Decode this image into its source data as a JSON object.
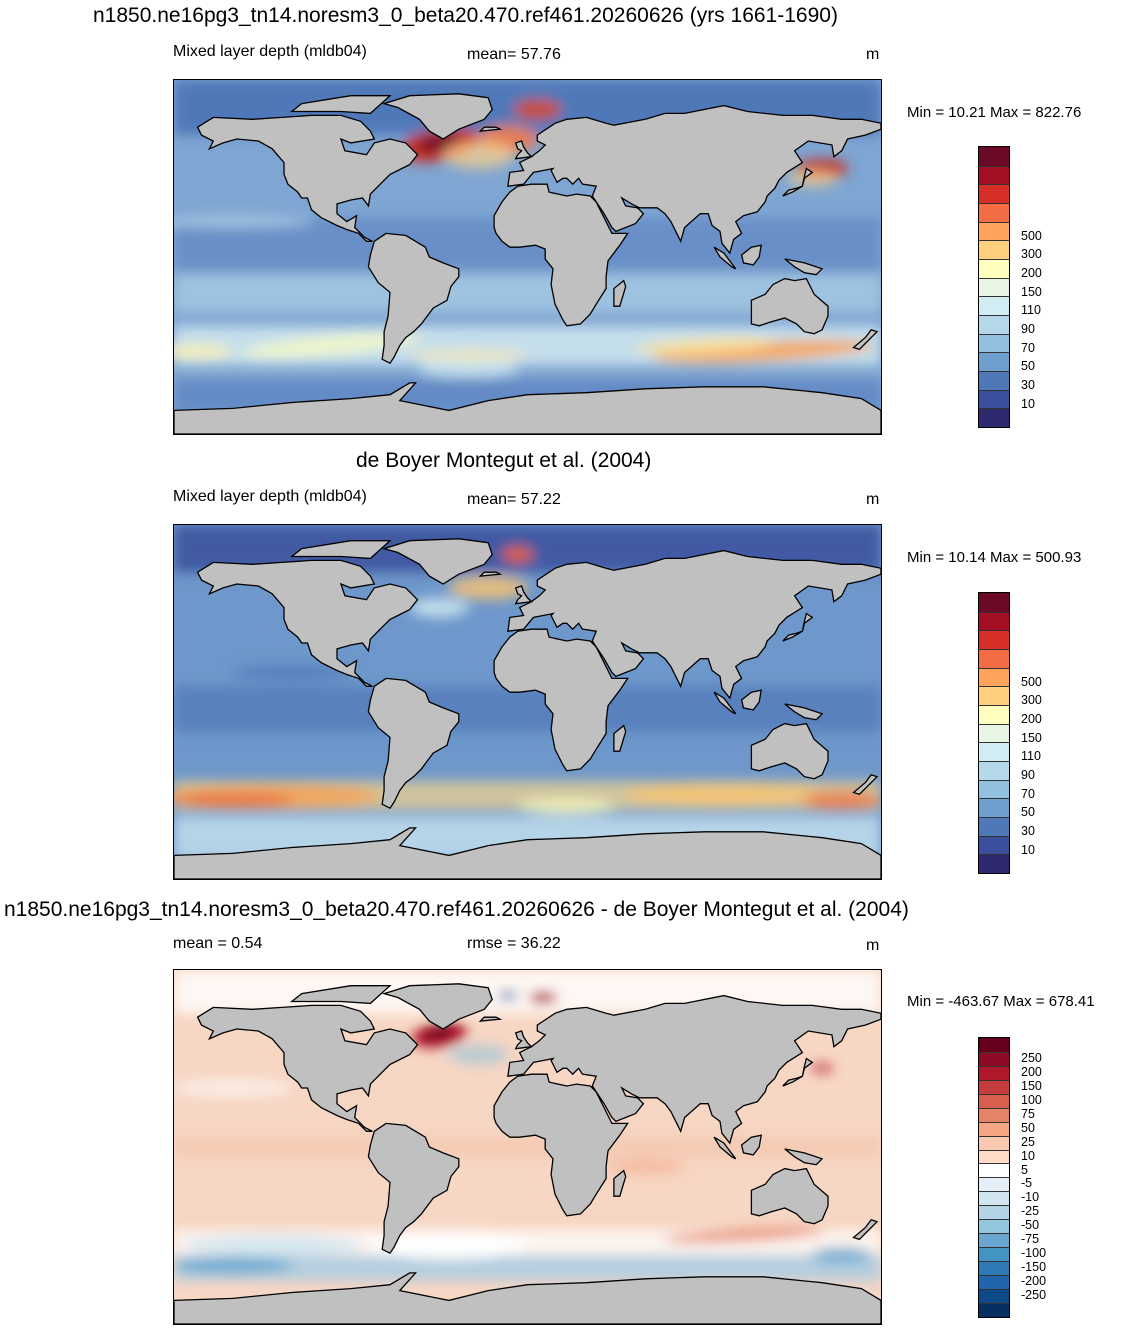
{
  "panels": [
    {
      "title": "n1850.ne16pg3_tn14.noresm3_0_beta20.470.ref461.20260626 (yrs 1661-1690)",
      "left_label": "Mixed layer depth (mldb04)",
      "center_label": "mean=  57.76",
      "units": "m",
      "minmax": "Min =  10.21 Max = 822.76",
      "colorbar": {
        "labels": [
          "500",
          "300",
          "200",
          "150",
          "110",
          "90",
          "70",
          "50",
          "30",
          "10"
        ],
        "colors": [
          "#6b0a26",
          "#a50f26",
          "#d62f27",
          "#f46c43",
          "#fca45c",
          "#fdcf7e",
          "#ffffbf",
          "#e9f5e4",
          "#d2ecf3",
          "#b4d8ea",
          "#92c0df",
          "#6f9fcf",
          "#4f78b8",
          "#3b4f9c",
          "#2e2a6e"
        ]
      }
    },
    {
      "title": "de Boyer Montegut et al. (2004)",
      "left_label": "Mixed layer depth (mldb04)",
      "center_label": "mean=  57.22",
      "units": "m",
      "minmax": "Min =  10.14 Max = 500.93",
      "colorbar": {
        "labels": [
          "500",
          "300",
          "200",
          "150",
          "110",
          "90",
          "70",
          "50",
          "30",
          "10"
        ],
        "colors": [
          "#6b0a26",
          "#a50f26",
          "#d62f27",
          "#f46c43",
          "#fca45c",
          "#fdcf7e",
          "#ffffbf",
          "#e9f5e4",
          "#d2ecf3",
          "#b4d8ea",
          "#92c0df",
          "#6f9fcf",
          "#4f78b8",
          "#3b4f9c",
          "#2e2a6e"
        ]
      }
    },
    {
      "title": "n1850.ne16pg3_tn14.noresm3_0_beta20.470.ref461.20260626 - de Boyer Montegut et al. (2004)",
      "left_label": "mean =   0.54",
      "center_label": "rmse =  36.22",
      "units": "m",
      "minmax": "Min = -463.67 Max = 678.41",
      "colorbar": {
        "labels": [
          "250",
          "200",
          "150",
          "100",
          "75",
          "50",
          "25",
          "10",
          "5",
          "-5",
          "-10",
          "-25",
          "-50",
          "-75",
          "-100",
          "-150",
          "-200",
          "-250"
        ],
        "colors": [
          "#67001f",
          "#8e0b25",
          "#b2182b",
          "#c43c3c",
          "#d6604d",
          "#e58368",
          "#f4a582",
          "#f9c9af",
          "#fddbc7",
          "#ffffff",
          "#e6eff7",
          "#d1e5f0",
          "#b3d4e7",
          "#92c5de",
          "#6aa6cf",
          "#4393c3",
          "#2f79b5",
          "#2166ac",
          "#0d4a8a",
          "#053061"
        ]
      }
    }
  ],
  "map_colors": {
    "land": "#c0c0c0",
    "coast": "#000000"
  }
}
